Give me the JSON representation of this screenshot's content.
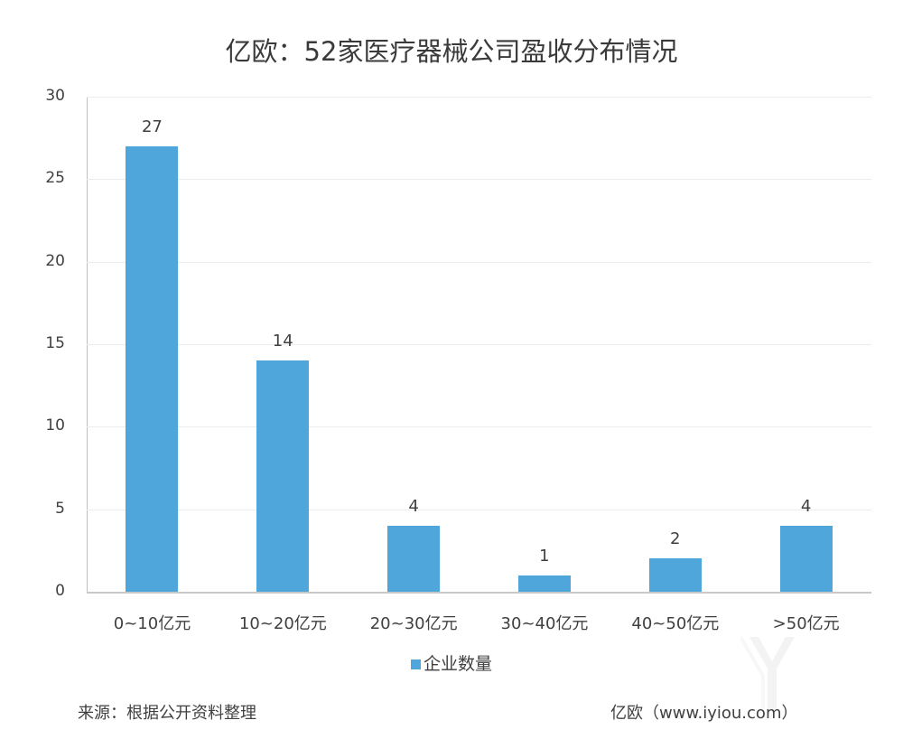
{
  "chart_data": {
    "type": "bar",
    "title": "亿欧：52家医疗器械公司盈收分布情况",
    "categories": [
      "0~10亿元",
      "10~20亿元",
      "20~30亿元",
      "30~40亿元",
      "40~50亿元",
      ">50亿元"
    ],
    "series": [
      {
        "name": "企业数量",
        "values": [
          27,
          14,
          4,
          1,
          2,
          4
        ],
        "color": "#4ea6da"
      }
    ],
    "xlabel": "",
    "ylabel": "",
    "ylim": [
      0,
      30
    ],
    "yticks": [
      0,
      5,
      10,
      15,
      20,
      25,
      30
    ],
    "grid": true,
    "legend_position": "bottom",
    "data_labels": true
  },
  "title": "亿欧：52家医疗器械公司盈收分布情况",
  "yticks": [
    "30",
    "25",
    "20",
    "15",
    "10",
    "5",
    "0"
  ],
  "bars": [
    {
      "label": "0~10亿元",
      "value": "27"
    },
    {
      "label": "10~20亿元",
      "value": "14"
    },
    {
      "label": "20~30亿元",
      "value": "4"
    },
    {
      "label": "30~40亿元",
      "value": "1"
    },
    {
      "label": "40~50亿元",
      "value": "2"
    },
    {
      "label": ">50亿元",
      "value": "4"
    }
  ],
  "legend": {
    "label": "企业数量"
  },
  "footer": {
    "source": "来源：根据公开资料整理",
    "credit": "亿欧（www.iyiou.com）"
  }
}
